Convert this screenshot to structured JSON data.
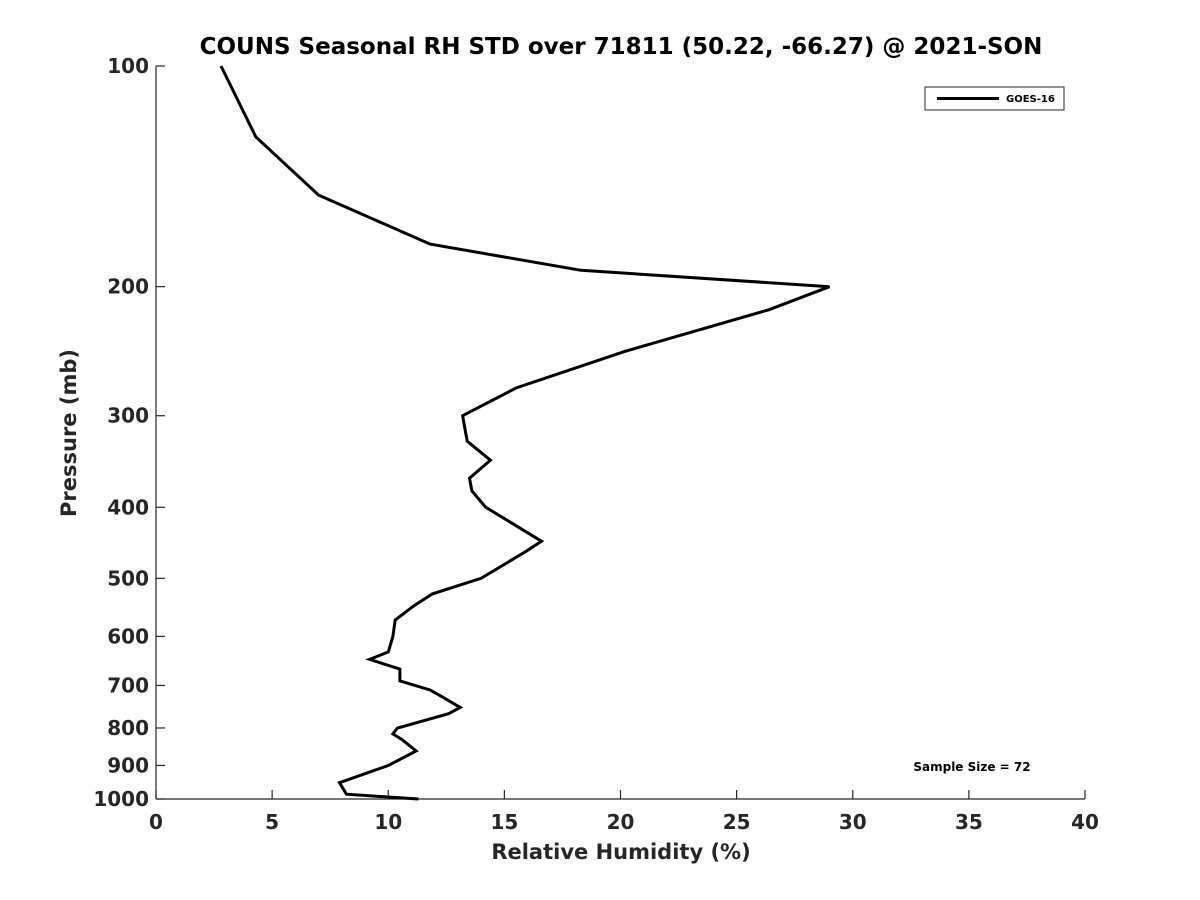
{
  "chart_data": {
    "type": "line",
    "title": "COUNS Seasonal RH STD over 71811 (50.22, -66.27) @ 2021-SON",
    "xlabel": "Relative Humidity (%)",
    "ylabel": "Pressure (mb)",
    "xlim": [
      0,
      40
    ],
    "ylim": [
      100,
      1000
    ],
    "y_scale": "log",
    "y_direction": "reversed",
    "x_ticks": [
      0,
      5,
      10,
      15,
      20,
      25,
      30,
      35,
      40
    ],
    "x_tick_labels": [
      "0",
      "5",
      "10",
      "15",
      "20",
      "25",
      "30",
      "35",
      "40"
    ],
    "y_ticks": [
      100,
      200,
      300,
      400,
      500,
      600,
      700,
      800,
      900,
      1000
    ],
    "y_tick_labels": [
      "100",
      "200",
      "300",
      "400",
      "500",
      "600",
      "700",
      "800",
      "900",
      "1000"
    ],
    "grid": false,
    "legend": {
      "position": "top-right",
      "entries": [
        "GOES-16"
      ]
    },
    "annotation": "Sample Size = 72",
    "series": [
      {
        "name": "GOES-16",
        "color": "#000000",
        "points": [
          {
            "x": 2.8,
            "y": 100
          },
          {
            "x": 4.3,
            "y": 125
          },
          {
            "x": 7.0,
            "y": 150
          },
          {
            "x": 11.8,
            "y": 175
          },
          {
            "x": 18.3,
            "y": 190
          },
          {
            "x": 29.0,
            "y": 200
          },
          {
            "x": 26.4,
            "y": 215
          },
          {
            "x": 20.2,
            "y": 245
          },
          {
            "x": 15.5,
            "y": 275
          },
          {
            "x": 13.2,
            "y": 300
          },
          {
            "x": 13.4,
            "y": 325
          },
          {
            "x": 14.4,
            "y": 345
          },
          {
            "x": 13.5,
            "y": 365
          },
          {
            "x": 13.6,
            "y": 380
          },
          {
            "x": 14.2,
            "y": 400
          },
          {
            "x": 16.6,
            "y": 445
          },
          {
            "x": 15.9,
            "y": 460
          },
          {
            "x": 14.0,
            "y": 500
          },
          {
            "x": 11.9,
            "y": 525
          },
          {
            "x": 11.1,
            "y": 545
          },
          {
            "x": 10.3,
            "y": 570
          },
          {
            "x": 10.2,
            "y": 600
          },
          {
            "x": 10.0,
            "y": 630
          },
          {
            "x": 9.2,
            "y": 645
          },
          {
            "x": 10.5,
            "y": 665
          },
          {
            "x": 10.5,
            "y": 690
          },
          {
            "x": 11.8,
            "y": 710
          },
          {
            "x": 12.3,
            "y": 725
          },
          {
            "x": 13.1,
            "y": 750
          },
          {
            "x": 12.6,
            "y": 765
          },
          {
            "x": 10.4,
            "y": 800
          },
          {
            "x": 10.2,
            "y": 815
          },
          {
            "x": 10.6,
            "y": 830
          },
          {
            "x": 11.2,
            "y": 860
          },
          {
            "x": 10.0,
            "y": 900
          },
          {
            "x": 7.9,
            "y": 950
          },
          {
            "x": 8.2,
            "y": 985
          },
          {
            "x": 11.3,
            "y": 1000
          }
        ]
      }
    ]
  }
}
